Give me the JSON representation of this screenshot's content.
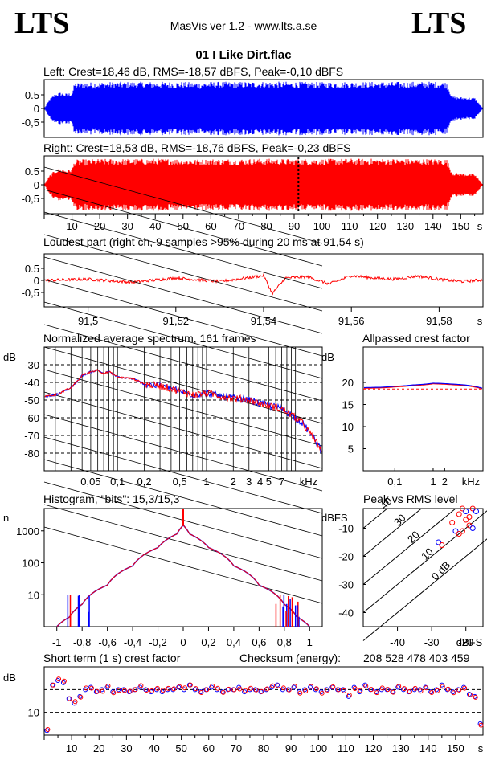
{
  "header": {
    "logo_left": "LTS",
    "logo_right": "LTS",
    "app_title": "MasVis ver 1.2 - www.lts.a.se",
    "file_title": "01 I Like Dirt.flac"
  },
  "colors": {
    "left_channel": "#0000ff",
    "right_channel": "#ff0000",
    "grid": "#000000"
  },
  "panels": {
    "left_waveform": {
      "title": "Left: Crest=18,46 dB, RMS=-18,57 dBFS, Peak=-0,10 dBFS",
      "yticks": [
        "0.5",
        "0",
        "-0,5"
      ]
    },
    "right_waveform": {
      "title": "Right: Crest=18,53 dB, RMS=-18,76 dBFS, Peak=-0,23 dBFS",
      "yticks": [
        "0.5",
        "0",
        "-0,5"
      ]
    },
    "time_axis": {
      "ticks": [
        "10",
        "20",
        "30",
        "40",
        "50",
        "60",
        "70",
        "80",
        "90",
        "100",
        "110",
        "120",
        "130",
        "140",
        "150"
      ],
      "unit": "s"
    },
    "loudest": {
      "title": "Loudest part (right ch, 9 samples >95% during 20 ms at 91,54 s)",
      "yticks": [
        "0.5",
        "0",
        "-0,5"
      ],
      "xticks": [
        "91,5",
        "91,52",
        "91,54",
        "91,56",
        "91,58"
      ],
      "unit": "s"
    },
    "spectrum": {
      "title": "Normalized average spectrum, 161 frames",
      "ylabel": "dB",
      "yticks": [
        "-30",
        "-40",
        "-50",
        "-60",
        "-70",
        "-80"
      ],
      "xticks": [
        "0,05",
        "0,1",
        "0,2",
        "0,5",
        "1",
        "2",
        "3",
        "4",
        "5",
        "7"
      ],
      "xunit": "kHz"
    },
    "crest_factor": {
      "title": "Allpassed crest factor",
      "ylabel": "dB",
      "yticks": [
        "20",
        "15",
        "10",
        "5"
      ],
      "xticks": [
        "0,1",
        "1",
        "2"
      ],
      "xunit": "kHz"
    },
    "histogram": {
      "title": "Histogram, \"bits\": 15,3/15,3",
      "ylabel": "n",
      "yticks": [
        "1000",
        "100",
        "10"
      ],
      "xticks": [
        "-1",
        "-0,8",
        "-0,6",
        "-0,4",
        "-0,2",
        "0",
        "0,2",
        "0,4",
        "0,6",
        "0,8",
        "1"
      ]
    },
    "peak_rms": {
      "title": "Peak vs RMS level",
      "ylabel": "dBFS",
      "yticks": [
        "-10",
        "-20",
        "-30",
        "-40"
      ],
      "xticks": [
        "-40",
        "-30",
        "-20"
      ],
      "xunit": "dBFS",
      "diag_labels": [
        "40",
        "30",
        "20",
        "10",
        "0 dB"
      ]
    },
    "short_crest": {
      "title": "Short term (1 s) crest factor",
      "checksum_label": "Checksum (energy):",
      "checksum_value": "208 528 478 403 459",
      "ylabel": "dB",
      "yticks": [
        "10"
      ],
      "xticks": [
        "10",
        "20",
        "30",
        "40",
        "50",
        "60",
        "70",
        "80",
        "90",
        "100",
        "110",
        "120",
        "130",
        "140",
        "150"
      ],
      "unit": "s"
    }
  },
  "chart_data": [
    {
      "type": "area",
      "title": "Left: Crest=18,46 dB, RMS=-18,57 dBFS, Peak=-0,10 dBFS",
      "xlabel": "s",
      "xlim": [
        0,
        158
      ],
      "ylim": [
        -1,
        1
      ],
      "envelope": {
        "x": [
          0,
          2,
          4,
          6,
          8,
          10,
          11,
          13,
          20,
          30,
          40,
          50,
          56,
          60,
          70,
          80,
          90,
          100,
          110,
          120,
          130,
          140,
          145,
          147,
          150,
          155,
          158
        ],
        "amp": [
          0,
          0.35,
          0.55,
          0.6,
          0.55,
          0.6,
          0.95,
          0.95,
          0.97,
          0.98,
          0.98,
          0.98,
          0.95,
          0.98,
          0.98,
          0.99,
          0.98,
          0.97,
          0.98,
          0.98,
          0.98,
          0.99,
          0.97,
          0.45,
          0.42,
          0.4,
          0
        ]
      }
    },
    {
      "type": "area",
      "title": "Right: Crest=18,53 dB, RMS=-18,76 dBFS, Peak=-0,23 dBFS",
      "xlabel": "s",
      "xlim": [
        0,
        158
      ],
      "ylim": [
        -1,
        1
      ],
      "envelope": {
        "x": [
          0,
          2,
          4,
          6,
          8,
          10,
          11,
          13,
          20,
          30,
          40,
          50,
          56,
          60,
          70,
          80,
          90,
          100,
          110,
          120,
          130,
          140,
          145,
          147,
          150,
          155,
          158
        ],
        "amp": [
          0,
          0.35,
          0.55,
          0.6,
          0.55,
          0.6,
          0.92,
          0.93,
          0.95,
          0.95,
          0.96,
          0.95,
          0.93,
          0.95,
          0.95,
          0.96,
          0.95,
          0.95,
          0.96,
          0.96,
          0.95,
          0.95,
          0.94,
          0.45,
          0.42,
          0.4,
          0
        ]
      }
    },
    {
      "type": "line",
      "title": "Loudest part (right ch, 9 samples >95% during 20 ms at 91,54 s)",
      "xlabel": "s",
      "xlim": [
        91.49,
        91.59
      ],
      "ylim": [
        -1,
        1
      ],
      "series": [
        {
          "x": [
            91.49,
            91.5,
            91.51,
            91.52,
            91.53,
            91.535,
            91.54,
            91.542,
            91.545,
            91.55,
            91.555,
            91.56,
            91.565,
            91.57,
            91.575,
            91.58,
            91.585,
            91.59
          ],
          "values": [
            0,
            0.05,
            -0.08,
            0.1,
            -0.05,
            0.08,
            0.2,
            -0.55,
            0.1,
            0.15,
            -0.15,
            0.2,
            0.1,
            0.05,
            0.18,
            0.05,
            -0.05,
            0.02
          ]
        }
      ]
    },
    {
      "type": "line",
      "title": "Normalized average spectrum, 161 frames",
      "xlabel": "kHz",
      "ylabel": "dB",
      "xlim": [
        0.015,
        20
      ],
      "ylim": [
        -90,
        -20
      ],
      "xscale": "log",
      "series": [
        {
          "x": [
            0.015,
            0.02,
            0.03,
            0.04,
            0.05,
            0.06,
            0.07,
            0.08,
            0.1,
            0.15,
            0.2,
            0.3,
            0.5,
            0.7,
            1,
            1.5,
            2,
            3,
            4,
            5,
            7,
            10,
            12,
            15,
            18,
            20
          ],
          "values": [
            -48,
            -47,
            -43,
            -36,
            -34,
            -33,
            -35,
            -34,
            -37,
            -38,
            -41,
            -42,
            -45,
            -47,
            -46,
            -48,
            -49,
            -50,
            -52,
            -53,
            -55,
            -60,
            -63,
            -70,
            -75,
            -80
          ]
        }
      ]
    },
    {
      "type": "line",
      "title": "Allpassed crest factor",
      "xlabel": "kHz",
      "ylabel": "dB",
      "xlim": [
        0.015,
        20
      ],
      "ylim": [
        0,
        28
      ],
      "xscale": "log",
      "series": [
        {
          "x": [
            0.015,
            0.05,
            0.1,
            0.3,
            1,
            3,
            10,
            20
          ],
          "values": [
            18.8,
            18.9,
            19.1,
            19.4,
            19.8,
            19.6,
            19.2,
            18.6
          ]
        }
      ],
      "reference_line": 18.5
    },
    {
      "type": "line",
      "title": "Histogram, \"bits\": 15,3/15,3",
      "ylabel": "n",
      "xlim": [
        -1.1,
        1.1
      ],
      "ylim": [
        1,
        5000
      ],
      "yscale": "log",
      "series": [
        {
          "x": [
            -1,
            -0.9,
            -0.8,
            -0.6,
            -0.4,
            -0.2,
            -0.05,
            0,
            0.05,
            0.2,
            0.4,
            0.6,
            0.8,
            0.9,
            1
          ],
          "values": [
            1,
            2,
            5,
            20,
            80,
            300,
            800,
            1500,
            800,
            300,
            80,
            20,
            5,
            2,
            1
          ]
        }
      ]
    },
    {
      "type": "scatter",
      "title": "Peak vs RMS level",
      "xlabel": "dBFS",
      "ylabel": "dBFS",
      "xlim": [
        -50,
        -15
      ],
      "ylim": [
        -45,
        -3
      ],
      "series": [
        {
          "x": [
            -28,
            -27,
            -24,
            -23,
            -22,
            -21,
            -20,
            -19,
            -18,
            -17,
            -20,
            -19,
            -18,
            -22,
            -21
          ],
          "values": [
            -15,
            -16,
            -8,
            -11,
            -5,
            -3,
            -4,
            -6,
            -3,
            -4,
            -7,
            -9,
            -10,
            -12,
            -11
          ]
        }
      ]
    },
    {
      "type": "scatter",
      "title": "Short term (1 s) crest factor",
      "xlabel": "s",
      "ylabel": "dB",
      "xlim": [
        0,
        160
      ],
      "ylim": [
        0,
        30
      ],
      "series": [
        {
          "x": [
            1,
            3,
            5,
            7,
            9,
            11,
            13,
            15,
            17,
            19,
            21,
            23,
            25,
            27,
            29,
            31,
            33,
            35,
            37,
            39,
            41,
            43,
            45,
            47,
            49,
            51,
            53,
            55,
            57,
            59,
            61,
            63,
            65,
            67,
            69,
            71,
            73,
            75,
            77,
            79,
            81,
            83,
            85,
            87,
            89,
            91,
            93,
            95,
            97,
            99,
            101,
            103,
            105,
            107,
            109,
            111,
            113,
            115,
            117,
            119,
            121,
            123,
            125,
            127,
            129,
            131,
            133,
            135,
            137,
            139,
            141,
            143,
            145,
            147,
            149,
            151,
            153,
            155,
            157,
            159
          ],
          "values": [
            2,
            22,
            24,
            23,
            16,
            14,
            17,
            20,
            21,
            19,
            20,
            21,
            19,
            20,
            20,
            19,
            20,
            21,
            20,
            19,
            20,
            19,
            20,
            20,
            21,
            20,
            22,
            20,
            19,
            20,
            21,
            20,
            19,
            20,
            20,
            21,
            19,
            20,
            20,
            19,
            20,
            21,
            22,
            20,
            20,
            21,
            19,
            20,
            21,
            20,
            19,
            20,
            21,
            20,
            20,
            17,
            21,
            19,
            22,
            20,
            19,
            20,
            20,
            19,
            21,
            20,
            19,
            20,
            20,
            21,
            19,
            20,
            22,
            20,
            19,
            20,
            21,
            18,
            17,
            5
          ]
        }
      ]
    }
  ]
}
